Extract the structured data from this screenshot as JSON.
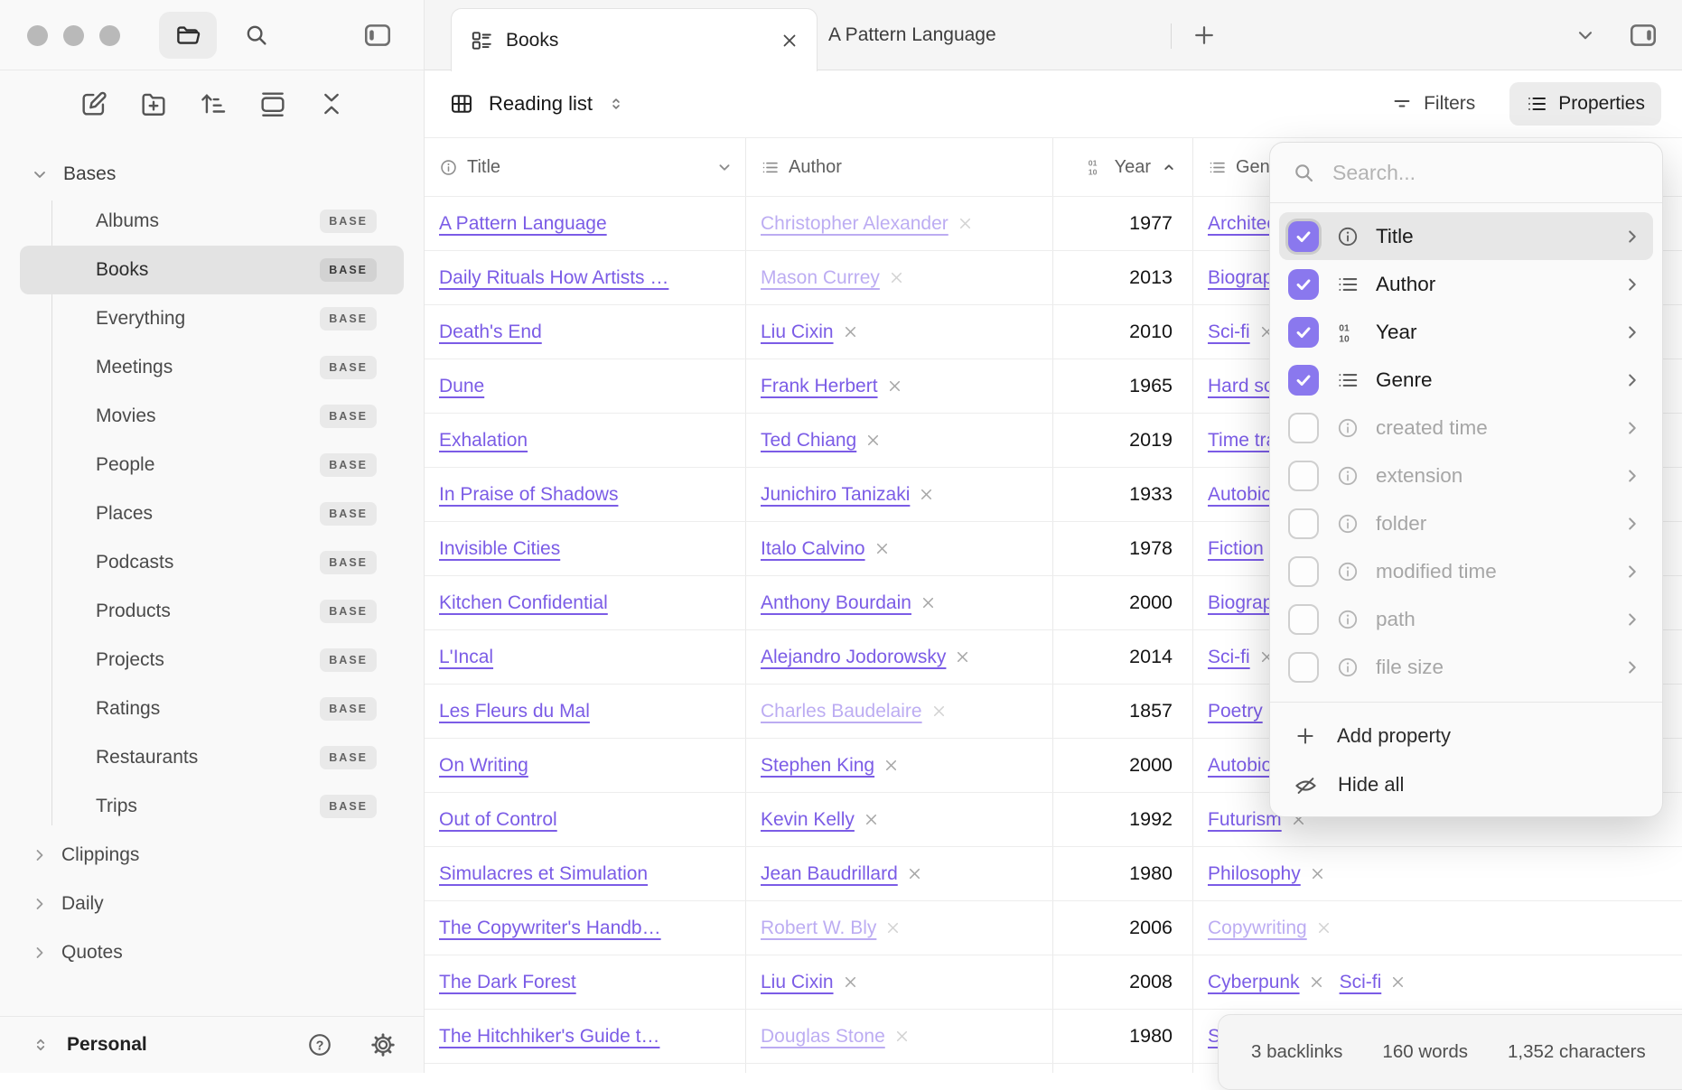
{
  "sidebar": {
    "bases_label": "Bases",
    "base_items": [
      {
        "label": "Albums",
        "badge": "BASE"
      },
      {
        "label": "Books",
        "badge": "BASE",
        "selected": true
      },
      {
        "label": "Everything",
        "badge": "BASE"
      },
      {
        "label": "Meetings",
        "badge": "BASE"
      },
      {
        "label": "Movies",
        "badge": "BASE"
      },
      {
        "label": "People",
        "badge": "BASE"
      },
      {
        "label": "Places",
        "badge": "BASE"
      },
      {
        "label": "Podcasts",
        "badge": "BASE"
      },
      {
        "label": "Products",
        "badge": "BASE"
      },
      {
        "label": "Projects",
        "badge": "BASE"
      },
      {
        "label": "Ratings",
        "badge": "BASE"
      },
      {
        "label": "Restaurants",
        "badge": "BASE"
      },
      {
        "label": "Trips",
        "badge": "BASE"
      }
    ],
    "folders": [
      "Clippings",
      "Daily",
      "Quotes"
    ],
    "vault_name": "Personal"
  },
  "tabs": {
    "active_label": "Books",
    "secondary_label": "A Pattern Language"
  },
  "view": {
    "title": "Reading list",
    "filters_label": "Filters",
    "properties_label": "Properties"
  },
  "table": {
    "columns": [
      {
        "label": "Title",
        "icon": "info"
      },
      {
        "label": "Author",
        "icon": "list"
      },
      {
        "label": "Year",
        "icon": "number",
        "sort": "asc"
      },
      {
        "label": "Genre",
        "icon": "list"
      }
    ],
    "rows": [
      {
        "title": "A Pattern Language",
        "author": "Christopher Alexander",
        "author_faded": true,
        "year": "1977",
        "genres": [
          {
            "label": "Architecture"
          }
        ]
      },
      {
        "title": "Daily Rituals How Artists …",
        "author": "Mason Currey",
        "author_faded": true,
        "year": "2013",
        "genres": [
          {
            "label": "Biography"
          }
        ]
      },
      {
        "title": "Death's End",
        "author": "Liu Cixin",
        "year": "2010",
        "genres": [
          {
            "label": "Sci-fi"
          }
        ]
      },
      {
        "title": "Dune",
        "author": "Frank Herbert",
        "year": "1965",
        "genres": [
          {
            "label": "Hard sci-fi"
          }
        ]
      },
      {
        "title": "Exhalation",
        "author": "Ted Chiang",
        "year": "2019",
        "genres": [
          {
            "label": "Time travel"
          }
        ]
      },
      {
        "title": "In Praise of Shadows",
        "author": "Junichiro Tanizaki",
        "year": "1933",
        "genres": [
          {
            "label": "Autobiography"
          }
        ]
      },
      {
        "title": "Invisible Cities",
        "author": "Italo Calvino",
        "year": "1978",
        "genres": [
          {
            "label": "Fiction"
          }
        ]
      },
      {
        "title": "Kitchen Confidential",
        "author": "Anthony Bourdain",
        "year": "2000",
        "genres": [
          {
            "label": "Biography"
          }
        ]
      },
      {
        "title": "L'Incal",
        "author": "Alejandro Jodorowsky",
        "year": "2014",
        "genres": [
          {
            "label": "Sci-fi"
          }
        ]
      },
      {
        "title": "Les Fleurs du Mal",
        "author": "Charles Baudelaire",
        "author_faded": true,
        "year": "1857",
        "genres": [
          {
            "label": "Poetry"
          }
        ]
      },
      {
        "title": "On Writing",
        "author": "Stephen King",
        "year": "2000",
        "genres": [
          {
            "label": "Autobiography"
          }
        ]
      },
      {
        "title": "Out of Control",
        "author": "Kevin Kelly",
        "year": "1992",
        "genres": [
          {
            "label": "Futurism"
          }
        ]
      },
      {
        "title": "Simulacres et Simulation",
        "author": "Jean Baudrillard",
        "year": "1980",
        "genres": [
          {
            "label": "Philosophy"
          }
        ]
      },
      {
        "title": "The Copywriter's Handb…",
        "author": "Robert W. Bly",
        "author_faded": true,
        "year": "2006",
        "genres": [
          {
            "label": "Copywriting",
            "faded": true
          }
        ]
      },
      {
        "title": "The Dark Forest",
        "author": "Liu Cixin",
        "year": "2008",
        "genres": [
          {
            "label": "Cyberpunk"
          },
          {
            "label": "Sci-fi"
          }
        ]
      },
      {
        "title": "The Hitchhiker's Guide t…",
        "author": "Douglas Stone",
        "author_faded": true,
        "year": "1980",
        "genres": [
          {
            "label": "Sci-fi"
          }
        ]
      }
    ]
  },
  "properties_panel": {
    "search_placeholder": "Search...",
    "items": [
      {
        "label": "Title",
        "icon": "info",
        "checked": true,
        "highlighted": true
      },
      {
        "label": "Author",
        "icon": "list",
        "checked": true
      },
      {
        "label": "Year",
        "icon": "number",
        "checked": true
      },
      {
        "label": "Genre",
        "icon": "list",
        "checked": true
      },
      {
        "label": "created time",
        "icon": "info",
        "checked": false
      },
      {
        "label": "extension",
        "icon": "info",
        "checked": false
      },
      {
        "label": "folder",
        "icon": "info",
        "checked": false
      },
      {
        "label": "modified time",
        "icon": "info",
        "checked": false
      },
      {
        "label": "path",
        "icon": "info",
        "checked": false
      },
      {
        "label": "file size",
        "icon": "info",
        "checked": false
      }
    ],
    "add_property_label": "Add property",
    "hide_all_label": "Hide all"
  },
  "status_bar": {
    "backlinks": "3 backlinks",
    "words": "160 words",
    "characters": "1,352 characters"
  },
  "colors": {
    "accent": "#7b5ce6",
    "checkbox": "#8a78ee",
    "selected_row": "#e3e3e3"
  }
}
